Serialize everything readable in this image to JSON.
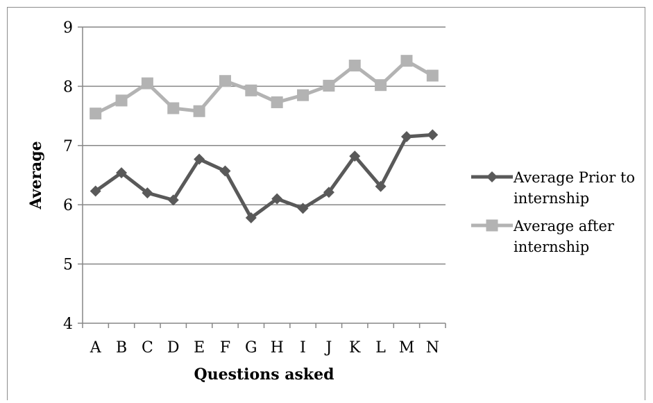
{
  "chart_data": {
    "type": "line",
    "title": "",
    "xlabel": "Questions asked",
    "ylabel": "Average",
    "categories": [
      "A",
      "B",
      "C",
      "D",
      "E",
      "F",
      "G",
      "H",
      "I",
      "J",
      "K",
      "L",
      "M",
      "N"
    ],
    "ylim": [
      4,
      9
    ],
    "yticks": [
      "4",
      "5",
      "6",
      "7",
      "8",
      "9"
    ],
    "grid": true,
    "legend_position": "right",
    "series": [
      {
        "name": "Average Prior to internship",
        "legend_lines": [
          "Average Prior to",
          "internship"
        ],
        "color": "#595959",
        "marker": "diamond",
        "values": [
          6.23,
          6.54,
          6.2,
          6.08,
          6.77,
          6.57,
          5.78,
          6.1,
          5.94,
          6.21,
          6.82,
          6.31,
          7.15,
          7.18
        ]
      },
      {
        "name": "Average after internship",
        "legend_lines": [
          "Average after",
          "internship"
        ],
        "color": "#b3b3b3",
        "marker": "square",
        "values": [
          7.54,
          7.76,
          8.05,
          7.63,
          7.58,
          8.09,
          7.93,
          7.73,
          7.85,
          8.01,
          8.35,
          8.02,
          8.43,
          8.18
        ]
      }
    ]
  }
}
